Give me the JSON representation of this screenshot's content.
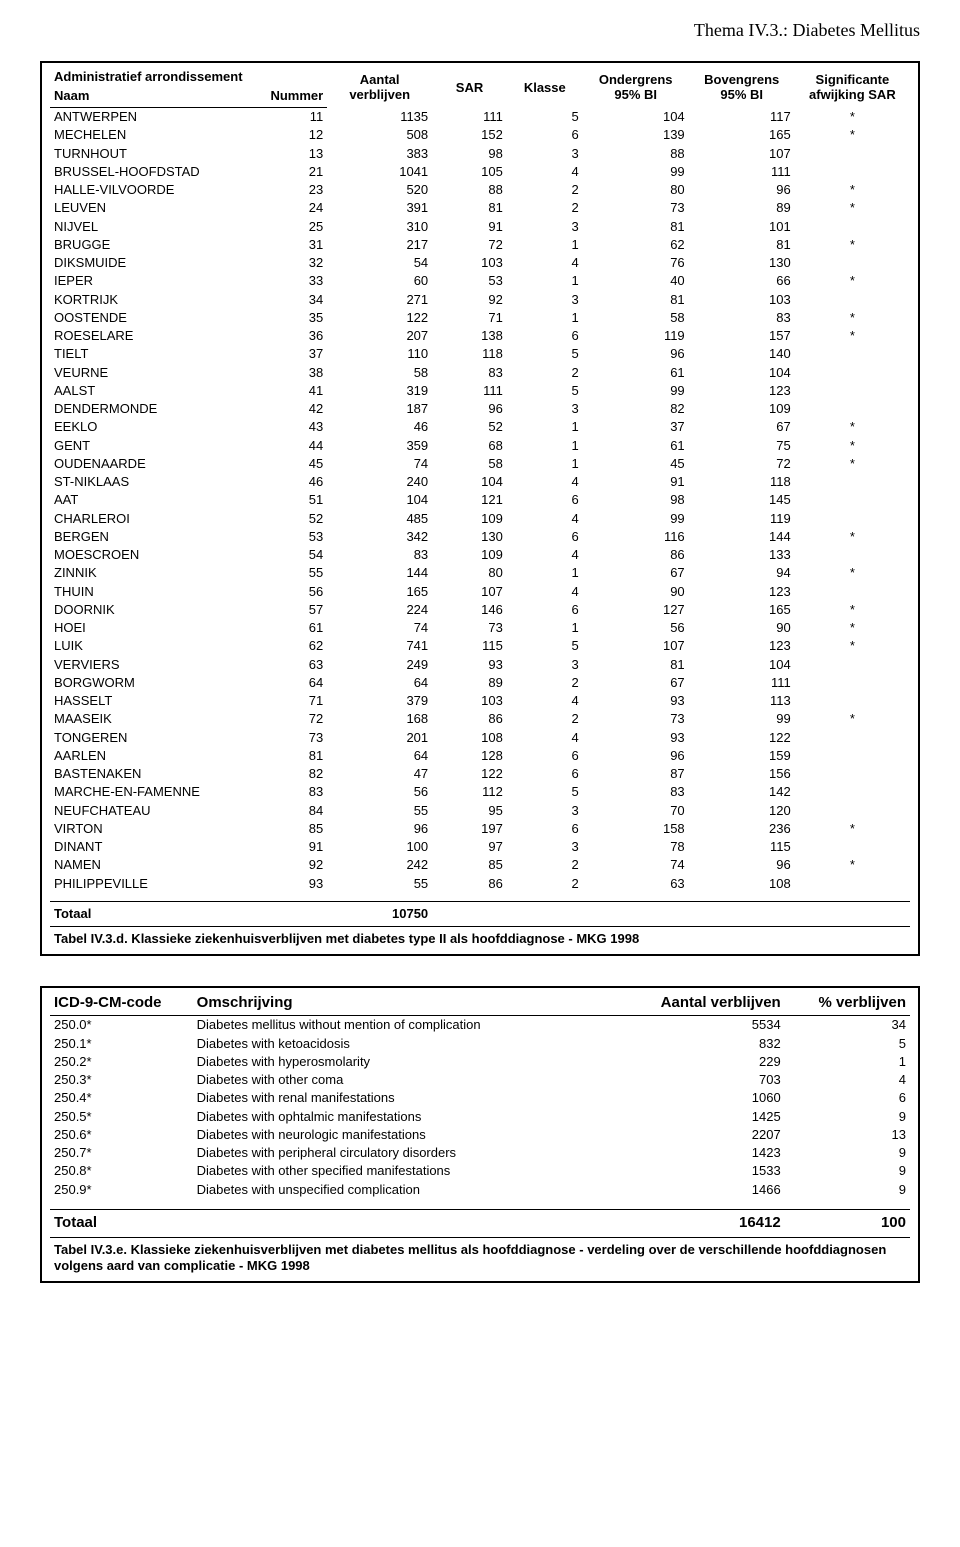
{
  "page_header": "Thema IV.3.: Diabetes Mellitus",
  "table1": {
    "headers": {
      "h1_line1": "Administratief arrondissement",
      "naam": "Naam",
      "nummer": "Nummer",
      "aantal": "Aantal verblijven",
      "sar": "SAR",
      "klasse": "Klasse",
      "ondergrens": "Ondergrens 95% BI",
      "bovengrens": "Bovengrens 95% BI",
      "signif": "Significante afwijking SAR"
    },
    "rows": [
      {
        "naam": "ANTWERPEN",
        "num": 11,
        "a": 1135,
        "sar": 111,
        "kl": 5,
        "og": 104,
        "bg": 117,
        "sig": "*"
      },
      {
        "naam": "MECHELEN",
        "num": 12,
        "a": 508,
        "sar": 152,
        "kl": 6,
        "og": 139,
        "bg": 165,
        "sig": "*"
      },
      {
        "naam": "TURNHOUT",
        "num": 13,
        "a": 383,
        "sar": 98,
        "kl": 3,
        "og": 88,
        "bg": 107,
        "sig": ""
      },
      {
        "naam": "BRUSSEL-HOOFDSTAD",
        "num": 21,
        "a": 1041,
        "sar": 105,
        "kl": 4,
        "og": 99,
        "bg": 111,
        "sig": ""
      },
      {
        "naam": "HALLE-VILVOORDE",
        "num": 23,
        "a": 520,
        "sar": 88,
        "kl": 2,
        "og": 80,
        "bg": 96,
        "sig": "*"
      },
      {
        "naam": "LEUVEN",
        "num": 24,
        "a": 391,
        "sar": 81,
        "kl": 2,
        "og": 73,
        "bg": 89,
        "sig": "*"
      },
      {
        "naam": "NIJVEL",
        "num": 25,
        "a": 310,
        "sar": 91,
        "kl": 3,
        "og": 81,
        "bg": 101,
        "sig": ""
      },
      {
        "naam": "BRUGGE",
        "num": 31,
        "a": 217,
        "sar": 72,
        "kl": 1,
        "og": 62,
        "bg": 81,
        "sig": "*"
      },
      {
        "naam": "DIKSMUIDE",
        "num": 32,
        "a": 54,
        "sar": 103,
        "kl": 4,
        "og": 76,
        "bg": 130,
        "sig": ""
      },
      {
        "naam": "IEPER",
        "num": 33,
        "a": 60,
        "sar": 53,
        "kl": 1,
        "og": 40,
        "bg": 66,
        "sig": "*"
      },
      {
        "naam": "KORTRIJK",
        "num": 34,
        "a": 271,
        "sar": 92,
        "kl": 3,
        "og": 81,
        "bg": 103,
        "sig": ""
      },
      {
        "naam": "OOSTENDE",
        "num": 35,
        "a": 122,
        "sar": 71,
        "kl": 1,
        "og": 58,
        "bg": 83,
        "sig": "*"
      },
      {
        "naam": "ROESELARE",
        "num": 36,
        "a": 207,
        "sar": 138,
        "kl": 6,
        "og": 119,
        "bg": 157,
        "sig": "*"
      },
      {
        "naam": "TIELT",
        "num": 37,
        "a": 110,
        "sar": 118,
        "kl": 5,
        "og": 96,
        "bg": 140,
        "sig": ""
      },
      {
        "naam": "VEURNE",
        "num": 38,
        "a": 58,
        "sar": 83,
        "kl": 2,
        "og": 61,
        "bg": 104,
        "sig": ""
      },
      {
        "naam": "AALST",
        "num": 41,
        "a": 319,
        "sar": 111,
        "kl": 5,
        "og": 99,
        "bg": 123,
        "sig": ""
      },
      {
        "naam": "DENDERMONDE",
        "num": 42,
        "a": 187,
        "sar": 96,
        "kl": 3,
        "og": 82,
        "bg": 109,
        "sig": ""
      },
      {
        "naam": "EEKLO",
        "num": 43,
        "a": 46,
        "sar": 52,
        "kl": 1,
        "og": 37,
        "bg": 67,
        "sig": "*"
      },
      {
        "naam": "GENT",
        "num": 44,
        "a": 359,
        "sar": 68,
        "kl": 1,
        "og": 61,
        "bg": 75,
        "sig": "*"
      },
      {
        "naam": "OUDENAARDE",
        "num": 45,
        "a": 74,
        "sar": 58,
        "kl": 1,
        "og": 45,
        "bg": 72,
        "sig": "*"
      },
      {
        "naam": "ST-NIKLAAS",
        "num": 46,
        "a": 240,
        "sar": 104,
        "kl": 4,
        "og": 91,
        "bg": 118,
        "sig": ""
      },
      {
        "naam": "AAT",
        "num": 51,
        "a": 104,
        "sar": 121,
        "kl": 6,
        "og": 98,
        "bg": 145,
        "sig": ""
      },
      {
        "naam": "CHARLEROI",
        "num": 52,
        "a": 485,
        "sar": 109,
        "kl": 4,
        "og": 99,
        "bg": 119,
        "sig": ""
      },
      {
        "naam": "BERGEN",
        "num": 53,
        "a": 342,
        "sar": 130,
        "kl": 6,
        "og": 116,
        "bg": 144,
        "sig": "*"
      },
      {
        "naam": "MOESCROEN",
        "num": 54,
        "a": 83,
        "sar": 109,
        "kl": 4,
        "og": 86,
        "bg": 133,
        "sig": ""
      },
      {
        "naam": "ZINNIK",
        "num": 55,
        "a": 144,
        "sar": 80,
        "kl": 1,
        "og": 67,
        "bg": 94,
        "sig": "*"
      },
      {
        "naam": "THUIN",
        "num": 56,
        "a": 165,
        "sar": 107,
        "kl": 4,
        "og": 90,
        "bg": 123,
        "sig": ""
      },
      {
        "naam": "DOORNIK",
        "num": 57,
        "a": 224,
        "sar": 146,
        "kl": 6,
        "og": 127,
        "bg": 165,
        "sig": "*"
      },
      {
        "naam": "HOEI",
        "num": 61,
        "a": 74,
        "sar": 73,
        "kl": 1,
        "og": 56,
        "bg": 90,
        "sig": "*"
      },
      {
        "naam": "LUIK",
        "num": 62,
        "a": 741,
        "sar": 115,
        "kl": 5,
        "og": 107,
        "bg": 123,
        "sig": "*"
      },
      {
        "naam": "VERVIERS",
        "num": 63,
        "a": 249,
        "sar": 93,
        "kl": 3,
        "og": 81,
        "bg": 104,
        "sig": ""
      },
      {
        "naam": "BORGWORM",
        "num": 64,
        "a": 64,
        "sar": 89,
        "kl": 2,
        "og": 67,
        "bg": 111,
        "sig": ""
      },
      {
        "naam": "HASSELT",
        "num": 71,
        "a": 379,
        "sar": 103,
        "kl": 4,
        "og": 93,
        "bg": 113,
        "sig": ""
      },
      {
        "naam": "MAASEIK",
        "num": 72,
        "a": 168,
        "sar": 86,
        "kl": 2,
        "og": 73,
        "bg": 99,
        "sig": "*"
      },
      {
        "naam": "TONGEREN",
        "num": 73,
        "a": 201,
        "sar": 108,
        "kl": 4,
        "og": 93,
        "bg": 122,
        "sig": ""
      },
      {
        "naam": "AARLEN",
        "num": 81,
        "a": 64,
        "sar": 128,
        "kl": 6,
        "og": 96,
        "bg": 159,
        "sig": ""
      },
      {
        "naam": "BASTENAKEN",
        "num": 82,
        "a": 47,
        "sar": 122,
        "kl": 6,
        "og": 87,
        "bg": 156,
        "sig": ""
      },
      {
        "naam": "MARCHE-EN-FAMENNE",
        "num": 83,
        "a": 56,
        "sar": 112,
        "kl": 5,
        "og": 83,
        "bg": 142,
        "sig": ""
      },
      {
        "naam": "NEUFCHATEAU",
        "num": 84,
        "a": 55,
        "sar": 95,
        "kl": 3,
        "og": 70,
        "bg": 120,
        "sig": ""
      },
      {
        "naam": "VIRTON",
        "num": 85,
        "a": 96,
        "sar": 197,
        "kl": 6,
        "og": 158,
        "bg": 236,
        "sig": "*"
      },
      {
        "naam": "DINANT",
        "num": 91,
        "a": 100,
        "sar": 97,
        "kl": 3,
        "og": 78,
        "bg": 115,
        "sig": ""
      },
      {
        "naam": "NAMEN",
        "num": 92,
        "a": 242,
        "sar": 85,
        "kl": 2,
        "og": 74,
        "bg": 96,
        "sig": "*"
      },
      {
        "naam": "PHILIPPEVILLE",
        "num": 93,
        "a": 55,
        "sar": 86,
        "kl": 2,
        "og": 63,
        "bg": 108,
        "sig": ""
      }
    ],
    "total_label": "Totaal",
    "total_value": 10750,
    "caption": "Tabel IV.3.d. Klassieke ziekenhuisverblijven met diabetes type II als hoofddiagnose - MKG 1998"
  },
  "table2": {
    "headers": {
      "code": "ICD-9-CM-code",
      "desc": "Omschrijving",
      "av": "Aantal verblijven",
      "pv": "% verblijven"
    },
    "rows": [
      {
        "code": "250.0*",
        "desc": "Diabetes mellitus without mention of complication",
        "av": 5534,
        "pv": 34
      },
      {
        "code": "250.1*",
        "desc": "Diabetes with ketoacidosis",
        "av": 832,
        "pv": 5
      },
      {
        "code": "250.2*",
        "desc": "Diabetes with hyperosmolarity",
        "av": 229,
        "pv": 1
      },
      {
        "code": "250.3*",
        "desc": "Diabetes with other coma",
        "av": 703,
        "pv": 4
      },
      {
        "code": "250.4*",
        "desc": "Diabetes with renal manifestations",
        "av": 1060,
        "pv": 6
      },
      {
        "code": "250.5*",
        "desc": "Diabetes with ophtalmic manifestations",
        "av": 1425,
        "pv": 9
      },
      {
        "code": "250.6*",
        "desc": "Diabetes with neurologic manifestations",
        "av": 2207,
        "pv": 13
      },
      {
        "code": "250.7*",
        "desc": "Diabetes with peripheral circulatory disorders",
        "av": 1423,
        "pv": 9
      },
      {
        "code": "250.8*",
        "desc": "Diabetes with other specified manifestations",
        "av": 1533,
        "pv": 9
      },
      {
        "code": "250.9*",
        "desc": "Diabetes with  unspecified complication",
        "av": 1466,
        "pv": 9
      }
    ],
    "total_label": "Totaal",
    "total_av": 16412,
    "total_pv": 100,
    "caption": "Tabel IV.3.e.  Klassieke ziekenhuisverblijven met diabetes mellitus als hoofddiagnose - verdeling over de verschillende hoofddiagnosen volgens aard van complicatie - MKG 1998"
  }
}
